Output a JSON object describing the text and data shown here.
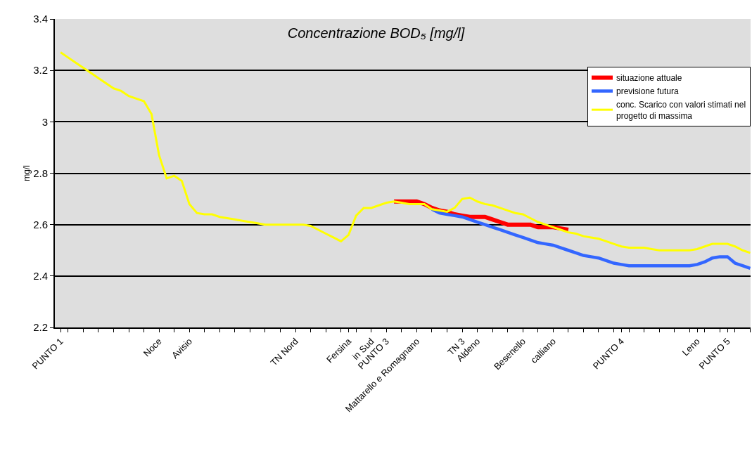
{
  "chart_data": {
    "type": "line",
    "title": "Concentrazione BOD₅ [mg/l]",
    "ylabel": "mg/l",
    "categories": [
      "PUNTO 1",
      null,
      null,
      null,
      null,
      null,
      null,
      null,
      null,
      null,
      null,
      null,
      null,
      "Noce",
      null,
      null,
      null,
      "Avisio",
      null,
      null,
      null,
      null,
      null,
      null,
      null,
      null,
      null,
      null,
      null,
      null,
      null,
      "TN Nord",
      null,
      null,
      null,
      null,
      null,
      null,
      "Fersina",
      null,
      null,
      "in Sud",
      null,
      "PUNTO 3",
      null,
      null,
      null,
      "Mattarello e Romagnano",
      null,
      null,
      null,
      null,
      null,
      "TN 3",
      null,
      "Aldeno",
      null,
      null,
      null,
      null,
      null,
      "Besenello",
      null,
      null,
      null,
      "calliano",
      null,
      null,
      null,
      null,
      null,
      null,
      null,
      null,
      "PUNTO 4",
      null,
      null,
      null,
      null,
      null,
      null,
      null,
      null,
      null,
      "Leno",
      null,
      null,
      null,
      "PUNTO 5",
      null,
      null,
      null
    ],
    "series": [
      {
        "name": "situazione attuale",
        "color": "#ff0000",
        "values": [
          null,
          null,
          null,
          null,
          null,
          null,
          null,
          null,
          null,
          null,
          null,
          null,
          null,
          null,
          null,
          null,
          null,
          null,
          null,
          null,
          null,
          null,
          null,
          null,
          null,
          null,
          null,
          null,
          null,
          null,
          null,
          null,
          null,
          null,
          null,
          null,
          null,
          null,
          null,
          null,
          null,
          null,
          null,
          null,
          2.69,
          2.69,
          2.69,
          2.69,
          2.68,
          2.665,
          2.655,
          2.65,
          2.64,
          2.635,
          2.63,
          2.63,
          2.63,
          2.62,
          2.61,
          2.6,
          2.6,
          2.6,
          2.6,
          2.59,
          2.59,
          2.59,
          2.585,
          2.58,
          null,
          null,
          null,
          null,
          null,
          null,
          null,
          null,
          null,
          null,
          null,
          null,
          null,
          null,
          null,
          null,
          null,
          null,
          null,
          null,
          null,
          null,
          null,
          null
        ]
      },
      {
        "name": "previsione futura",
        "color": "#3366ff",
        "values": [
          null,
          null,
          null,
          null,
          null,
          null,
          null,
          null,
          null,
          null,
          null,
          null,
          null,
          null,
          null,
          null,
          null,
          null,
          null,
          null,
          null,
          null,
          null,
          null,
          null,
          null,
          null,
          null,
          null,
          null,
          null,
          null,
          null,
          null,
          null,
          null,
          null,
          null,
          null,
          null,
          null,
          null,
          null,
          null,
          null,
          null,
          null,
          null,
          null,
          2.66,
          2.645,
          2.64,
          2.635,
          2.63,
          2.62,
          2.61,
          2.6,
          2.59,
          2.58,
          2.57,
          2.56,
          2.55,
          2.54,
          2.53,
          2.525,
          2.52,
          2.51,
          2.5,
          2.49,
          2.48,
          2.475,
          2.47,
          2.46,
          2.45,
          2.445,
          2.44,
          2.44,
          2.44,
          2.44,
          2.44,
          2.44,
          2.44,
          2.44,
          2.44,
          2.445,
          2.455,
          2.47,
          2.475,
          2.475,
          2.45,
          2.44,
          2.43
        ]
      },
      {
        "name": "conc. Scarico con valori stimati nel progetto di massima",
        "color": "#ffff00",
        "values": [
          3.27,
          3.25,
          3.23,
          3.21,
          3.19,
          3.17,
          3.15,
          3.13,
          3.12,
          3.1,
          3.09,
          3.08,
          3.03,
          2.87,
          2.78,
          2.79,
          2.77,
          2.68,
          2.645,
          2.64,
          2.64,
          2.63,
          2.625,
          2.62,
          2.615,
          2.61,
          2.605,
          2.6,
          2.6,
          2.6,
          2.6,
          2.6,
          2.6,
          2.595,
          2.58,
          2.565,
          2.55,
          2.535,
          2.56,
          2.635,
          2.665,
          2.665,
          2.675,
          2.685,
          2.69,
          2.685,
          2.68,
          2.68,
          2.68,
          2.66,
          2.655,
          2.65,
          2.665,
          2.7,
          2.705,
          2.69,
          2.68,
          2.675,
          2.665,
          2.655,
          2.645,
          2.64,
          2.625,
          2.61,
          2.6,
          2.59,
          2.58,
          2.57,
          2.565,
          2.555,
          2.55,
          2.545,
          2.535,
          2.525,
          2.515,
          2.51,
          2.51,
          2.51,
          2.505,
          2.5,
          2.5,
          2.5,
          2.5,
          2.5,
          2.505,
          2.515,
          2.525,
          2.525,
          2.525,
          2.515,
          2.5,
          2.49
        ]
      }
    ],
    "ylim": [
      2.2,
      3.4
    ],
    "yticks": [
      2.2,
      2.4,
      2.6,
      2.8,
      3,
      3.2,
      3.4
    ],
    "grid": "y",
    "legend": "top right",
    "marker": "none",
    "line_style": "solid"
  }
}
